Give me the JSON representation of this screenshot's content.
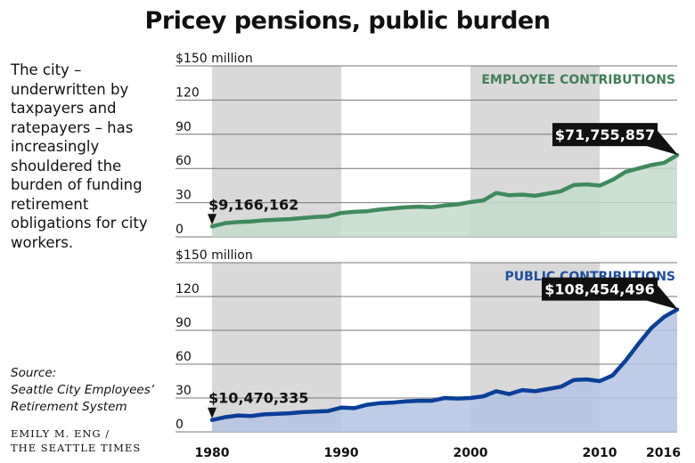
{
  "title": "Pricey pensions, public burden",
  "intro": "The city – underwritten by taxpayers and ratepayers – has increasingly shouldered the burden of funding retirement obligations for city workers.",
  "source": {
    "line1": "Source:",
    "line2": "Seattle City Employees’",
    "line3": "Retirement System"
  },
  "credit": {
    "line1": "EMILY M. ENG /",
    "line2": "THE SEATTLE TIMES"
  },
  "colors": {
    "employee_line": "#3f8a5c",
    "employee_fill": "#c3dccb",
    "employee_label": "#3f7f58",
    "public_line": "#0a3f98",
    "public_fill": "#b3c3e1",
    "public_label": "#1d4fa3",
    "shade": "#d9d9d9",
    "grid": "#777777"
  },
  "chart_data": [
    {
      "type": "area",
      "series": [
        {
          "name": "EMPLOYEE CONTRIBUTIONS",
          "x": [
            1980,
            1981,
            1982,
            1983,
            1984,
            1985,
            1986,
            1987,
            1988,
            1989,
            1990,
            1991,
            1992,
            1993,
            1994,
            1995,
            1996,
            1997,
            1998,
            1999,
            2000,
            2001,
            2002,
            2003,
            2004,
            2005,
            2006,
            2007,
            2008,
            2009,
            2010,
            2011,
            2012,
            2013,
            2014,
            2015,
            2016
          ],
          "values": [
            9.17,
            12,
            13,
            13.5,
            14.5,
            15,
            15.5,
            16.5,
            17.5,
            18,
            21,
            22,
            22.5,
            24,
            25,
            26,
            26.5,
            26,
            27.5,
            28.5,
            30.5,
            32,
            38.5,
            36.5,
            37,
            36,
            38,
            40,
            45.5,
            46,
            45,
            50,
            57,
            60,
            63,
            65,
            71.76
          ]
        }
      ],
      "y_ticks": [
        "$150 million",
        "120",
        "90",
        "60",
        "30",
        "0"
      ],
      "ylim": [
        0,
        150
      ],
      "xlim": [
        1980,
        2016
      ],
      "shaded_ranges": [
        [
          1980,
          1990
        ],
        [
          2000,
          2010
        ]
      ],
      "callouts": {
        "start": "$9,166,162",
        "end": "$71,755,857"
      }
    },
    {
      "type": "area",
      "series": [
        {
          "name": "PUBLIC CONTRIBUTIONS",
          "x": [
            1980,
            1981,
            1982,
            1983,
            1984,
            1985,
            1986,
            1987,
            1988,
            1989,
            1990,
            1991,
            1992,
            1993,
            1994,
            1995,
            1996,
            1997,
            1998,
            1999,
            2000,
            2001,
            2002,
            2003,
            2004,
            2005,
            2006,
            2007,
            2008,
            2009,
            2010,
            2011,
            2012,
            2013,
            2014,
            2015,
            2016
          ],
          "values": [
            10.47,
            13,
            14.5,
            14,
            15.5,
            16,
            16.5,
            17.5,
            18,
            18.5,
            21.5,
            21,
            24,
            25.5,
            26,
            27,
            27.5,
            27.5,
            30,
            29.5,
            30,
            31.5,
            36,
            33.5,
            37,
            36,
            38,
            40,
            46,
            46.5,
            45,
            50,
            63,
            78,
            92,
            102,
            108.45
          ]
        }
      ],
      "y_ticks": [
        "$150 million",
        "120",
        "90",
        "60",
        "30",
        "0"
      ],
      "ylim": [
        0,
        150
      ],
      "xlim": [
        1980,
        2016
      ],
      "x_ticks": [
        "1980",
        "1990",
        "2000",
        "2010",
        "2016"
      ],
      "x_tick_values": [
        1980,
        1990,
        2000,
        2010,
        2016
      ],
      "shaded_ranges": [
        [
          1980,
          1990
        ],
        [
          2000,
          2010
        ]
      ],
      "callouts": {
        "start": "$10,470,335",
        "end": "$108,454,496"
      }
    }
  ]
}
